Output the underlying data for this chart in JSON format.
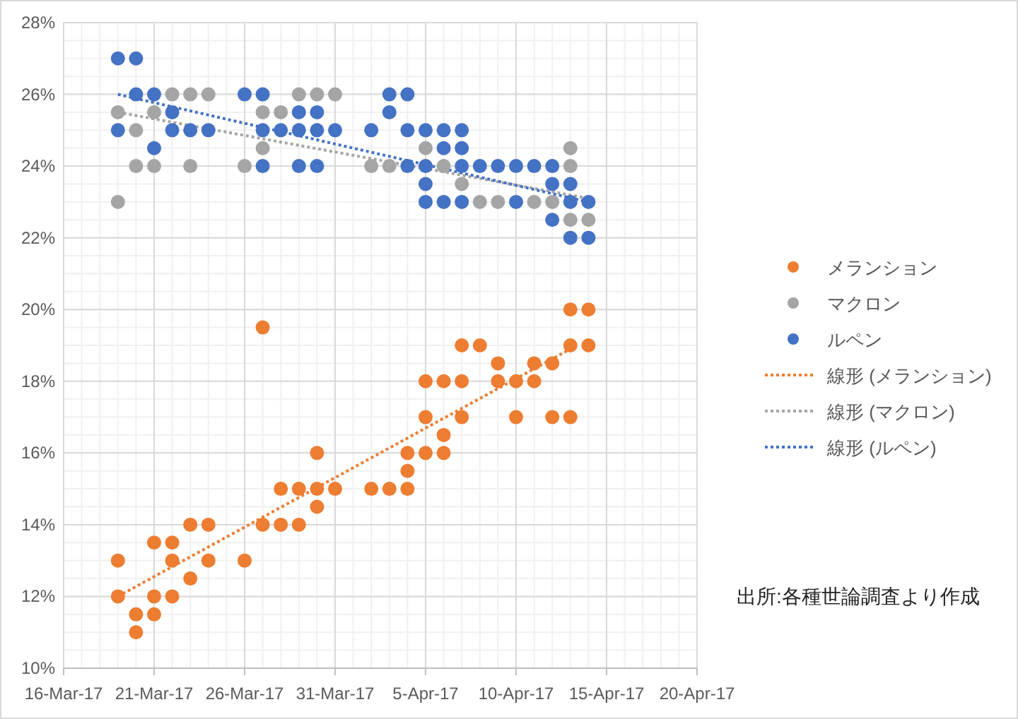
{
  "chart_data": {
    "type": "scatter",
    "xlim": [
      "--03-16",
      "--04-20"
    ],
    "xticks": [
      {
        "value": "--03-16",
        "label": "16-Mar-17"
      },
      {
        "value": "--03-21",
        "label": "21-Mar-17"
      },
      {
        "value": "--03-26",
        "label": "26-Mar-17"
      },
      {
        "value": "--03-31",
        "label": "31-Mar-17"
      },
      {
        "value": "--04-05",
        "label": "5-Apr-17"
      },
      {
        "value": "--04-10",
        "label": "10-Apr-17"
      },
      {
        "value": "--04-15",
        "label": "15-Apr-17"
      },
      {
        "value": "--04-20",
        "label": "20-Apr-17"
      }
    ],
    "ylim": [
      10,
      28
    ],
    "yticks": [
      {
        "value": 10,
        "label": "10%"
      },
      {
        "value": 12,
        "label": "12%"
      },
      {
        "value": 14,
        "label": "14%"
      },
      {
        "value": 16,
        "label": "16%"
      },
      {
        "value": 18,
        "label": "18%"
      },
      {
        "value": 20,
        "label": "20%"
      },
      {
        "value": 22,
        "label": "22%"
      },
      {
        "value": 24,
        "label": "24%"
      },
      {
        "value": 26,
        "label": "26%"
      },
      {
        "value": 28,
        "label": "28%"
      }
    ],
    "grid": true,
    "legend": "right",
    "marker": "circle",
    "annotations": [
      "出所:各種世論調査より作成"
    ],
    "series": [
      {
        "name": "メランション",
        "color": "#ed7d31",
        "x": [
          "--03-19",
          "--03-19",
          "--03-20",
          "--03-20",
          "--03-21",
          "--03-21",
          "--03-21",
          "--03-22",
          "--03-22",
          "--03-22",
          "--03-23",
          "--03-23",
          "--03-24",
          "--03-24",
          "--03-26",
          "--03-27",
          "--03-27",
          "--03-28",
          "--03-28",
          "--03-29",
          "--03-29",
          "--03-30",
          "--03-30",
          "--03-30",
          "--03-31",
          "--04-02",
          "--04-03",
          "--04-04",
          "--04-04",
          "--04-04",
          "--04-05",
          "--04-05",
          "--04-05",
          "--04-06",
          "--04-06",
          "--04-06",
          "--04-07",
          "--04-07",
          "--04-07",
          "--04-08",
          "--04-09",
          "--04-09",
          "--04-10",
          "--04-10",
          "--04-11",
          "--04-11",
          "--04-12",
          "--04-12",
          "--04-13",
          "--04-13",
          "--04-13",
          "--04-14",
          "--04-14"
        ],
        "values": [
          13,
          12,
          11.5,
          11,
          13.5,
          12,
          11.5,
          13.5,
          13,
          12,
          14,
          12.5,
          14,
          13,
          13,
          19.5,
          14,
          15,
          14,
          15,
          14,
          16,
          15,
          14.5,
          15,
          15,
          15,
          16,
          15.5,
          15,
          18,
          17,
          16,
          18,
          16.5,
          16,
          19,
          18,
          17,
          19,
          18.5,
          18,
          18,
          17,
          18.5,
          18,
          18.5,
          17,
          20,
          19,
          17,
          20,
          19
        ]
      },
      {
        "name": "マクロン",
        "color": "#a5a5a5",
        "x": [
          "--03-19",
          "--03-19",
          "--03-20",
          "--03-20",
          "--03-21",
          "--03-21",
          "--03-22",
          "--03-23",
          "--03-23",
          "--03-24",
          "--03-26",
          "--03-27",
          "--03-27",
          "--03-28",
          "--03-29",
          "--03-30",
          "--03-31",
          "--04-02",
          "--04-03",
          "--04-05",
          "--04-06",
          "--04-07",
          "--04-08",
          "--04-09",
          "--04-11",
          "--04-12",
          "--04-13",
          "--04-13",
          "--04-13",
          "--04-14"
        ],
        "values": [
          25.5,
          23,
          25,
          24,
          25.5,
          24,
          26,
          26,
          24,
          26,
          24,
          25.5,
          24.5,
          25.5,
          26,
          26,
          26,
          24,
          24,
          24.5,
          24,
          23.5,
          23,
          23,
          23,
          23,
          24.5,
          24,
          22.5,
          22.5
        ]
      },
      {
        "name": "ルペン",
        "color": "#4472c4",
        "x": [
          "--03-19",
          "--03-19",
          "--03-20",
          "--03-20",
          "--03-21",
          "--03-21",
          "--03-22",
          "--03-22",
          "--03-23",
          "--03-24",
          "--03-26",
          "--03-27",
          "--03-27",
          "--03-27",
          "--03-28",
          "--03-29",
          "--03-29",
          "--03-29",
          "--03-30",
          "--03-30",
          "--03-30",
          "--03-31",
          "--04-02",
          "--04-03",
          "--04-03",
          "--04-04",
          "--04-04",
          "--04-04",
          "--04-05",
          "--04-05",
          "--04-05",
          "--04-05",
          "--04-06",
          "--04-06",
          "--04-06",
          "--04-07",
          "--04-07",
          "--04-07",
          "--04-07",
          "--04-08",
          "--04-09",
          "--04-10",
          "--04-10",
          "--04-11",
          "--04-12",
          "--04-12",
          "--04-12",
          "--04-13",
          "--04-13",
          "--04-13",
          "--04-14",
          "--04-14"
        ],
        "values": [
          27,
          25,
          27,
          26,
          26,
          24.5,
          25.5,
          25,
          25,
          25,
          26,
          26,
          25,
          24,
          25,
          25.5,
          25,
          24,
          25.5,
          25,
          24,
          25,
          25,
          26,
          25.5,
          26,
          25,
          24,
          25,
          24,
          23.5,
          23,
          25,
          24.5,
          23,
          25,
          24.5,
          24,
          23,
          24,
          24,
          24,
          23,
          24,
          24,
          23.5,
          22.5,
          23.5,
          23,
          22,
          23,
          22
        ]
      },
      {
        "name": "線形 (メランション)",
        "type": "line",
        "marker": "none",
        "line_style": "dotted",
        "color": "#ed7d31",
        "x": [
          "--03-19",
          "--04-13"
        ],
        "values": [
          12.0,
          18.9
        ]
      },
      {
        "name": "線形 (マクロン)",
        "type": "line",
        "marker": "none",
        "line_style": "dotted",
        "color": "#a5a5a5",
        "x": [
          "--03-19",
          "--04-14"
        ],
        "values": [
          25.5,
          23.1
        ]
      },
      {
        "name": "線形 (ルペン)",
        "type": "line",
        "marker": "none",
        "line_style": "dotted",
        "color": "#4472c4",
        "x": [
          "--03-19",
          "--04-14"
        ],
        "values": [
          26.0,
          23.0
        ]
      }
    ]
  }
}
